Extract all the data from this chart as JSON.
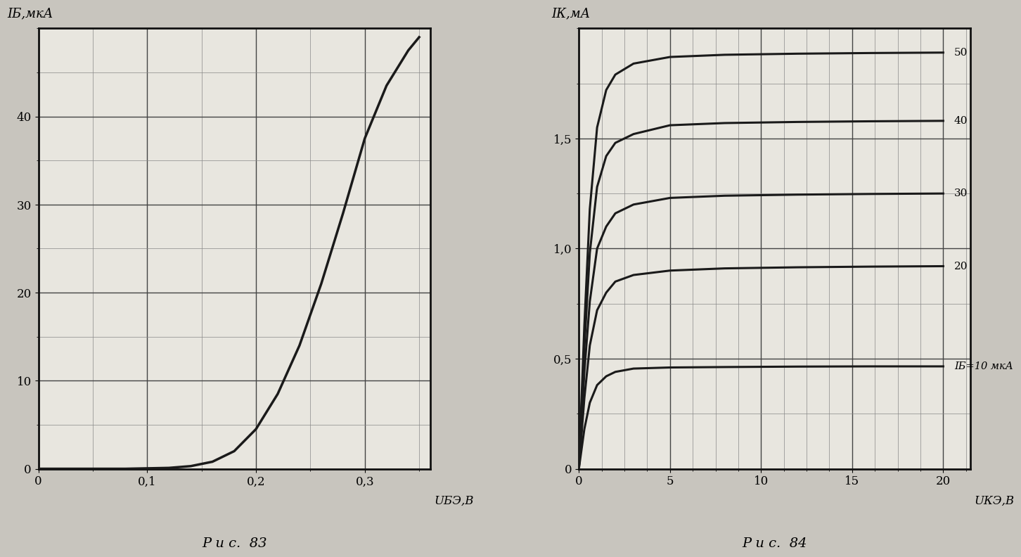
{
  "fig83": {
    "ylabel": "IБ,мкА",
    "xlabel": "UБЭ,В",
    "caption": "Р и с.  83",
    "xlim": [
      0,
      0.36
    ],
    "ylim": [
      0,
      50
    ],
    "xticks": [
      0.0,
      0.1,
      0.2,
      0.3
    ],
    "xtick_labels": [
      "0",
      "0,1",
      "0,2",
      "0,3"
    ],
    "yticks": [
      0,
      10,
      20,
      30,
      40
    ],
    "ytick_labels": [
      "0",
      "10",
      "20",
      "30",
      "40"
    ],
    "curve_x": [
      0.0,
      0.08,
      0.1,
      0.12,
      0.14,
      0.16,
      0.18,
      0.2,
      0.22,
      0.24,
      0.26,
      0.28,
      0.3,
      0.32,
      0.34,
      0.35
    ],
    "curve_y": [
      0.0,
      0.0,
      0.05,
      0.1,
      0.3,
      0.8,
      2.0,
      4.5,
      8.5,
      14.0,
      21.0,
      29.0,
      37.5,
      43.5,
      47.5,
      49.0
    ],
    "grid_major_color": "#444444",
    "grid_minor_color": "#888888",
    "line_color": "#1a1a1a",
    "bg_color": "#e8e6df",
    "spine_color": "#111111"
  },
  "fig84": {
    "ylabel": "IК,мА",
    "xlabel": "UКЭ,В",
    "caption": "Р и с.  84",
    "xlim": [
      0,
      21.5
    ],
    "ylim": [
      0,
      2.0
    ],
    "xticks": [
      0,
      5,
      10,
      15,
      20
    ],
    "xtick_labels": [
      "0",
      "5",
      "10",
      "15",
      "20"
    ],
    "yticks": [
      0,
      0.5,
      1.0,
      1.5
    ],
    "ytick_labels": [
      "0",
      "0,5",
      "1,0",
      "1,5"
    ],
    "grid_major_color": "#444444",
    "grid_minor_color": "#888888",
    "line_color": "#1a1a1a",
    "bg_color": "#e8e6df",
    "spine_color": "#111111",
    "curves": [
      {
        "label": "IБ=10 мкА",
        "x": [
          0.0,
          0.3,
          0.6,
          1.0,
          1.5,
          2.0,
          3.0,
          5.0,
          8.0,
          12.0,
          16.0,
          20.0
        ],
        "y": [
          0.0,
          0.18,
          0.3,
          0.38,
          0.42,
          0.44,
          0.455,
          0.46,
          0.462,
          0.464,
          0.465,
          0.465
        ]
      },
      {
        "label": "20",
        "x": [
          0.0,
          0.3,
          0.6,
          1.0,
          1.5,
          2.0,
          3.0,
          5.0,
          8.0,
          12.0,
          16.0,
          20.0
        ],
        "y": [
          0.0,
          0.32,
          0.56,
          0.72,
          0.8,
          0.85,
          0.88,
          0.9,
          0.91,
          0.915,
          0.918,
          0.92
        ]
      },
      {
        "label": "30",
        "x": [
          0.0,
          0.3,
          0.6,
          1.0,
          1.5,
          2.0,
          3.0,
          5.0,
          8.0,
          12.0,
          16.0,
          20.0
        ],
        "y": [
          0.0,
          0.44,
          0.76,
          1.0,
          1.1,
          1.16,
          1.2,
          1.23,
          1.24,
          1.245,
          1.248,
          1.25
        ]
      },
      {
        "label": "40",
        "x": [
          0.0,
          0.3,
          0.6,
          1.0,
          1.5,
          2.0,
          3.0,
          5.0,
          8.0,
          12.0,
          16.0,
          20.0
        ],
        "y": [
          0.0,
          0.55,
          0.98,
          1.28,
          1.42,
          1.48,
          1.52,
          1.56,
          1.57,
          1.575,
          1.578,
          1.58
        ]
      },
      {
        "label": "50",
        "x": [
          0.0,
          0.3,
          0.6,
          1.0,
          1.5,
          2.0,
          3.0,
          5.0,
          8.0,
          12.0,
          16.0,
          20.0
        ],
        "y": [
          0.0,
          0.65,
          1.18,
          1.55,
          1.72,
          1.79,
          1.84,
          1.87,
          1.88,
          1.885,
          1.888,
          1.89
        ]
      }
    ]
  },
  "outer_bg": "#c8c5be",
  "paper_bg": "#eceae3"
}
